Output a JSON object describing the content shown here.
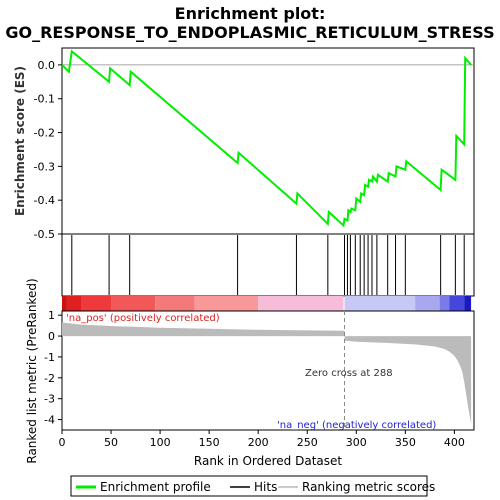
{
  "chart_data": {
    "type": "line",
    "title_line1": "Enrichment plot:",
    "title_line2": "GO_RESPONSE_TO_ENDOPLASMIC_RETICULUM_STRESS",
    "es_ylabel": "Enrichment score (ES)",
    "rank_ylabel": "Ranked list metric (PreRanked)",
    "xlabel": "Rank in Ordered Dataset",
    "xlim": [
      0,
      420
    ],
    "x_ticks": [
      "0",
      "50",
      "100",
      "150",
      "200",
      "250",
      "300",
      "350",
      "400"
    ],
    "es_ylim": [
      -0.5,
      0.05
    ],
    "es_ticks": [
      "0.0",
      "-0.1",
      "-0.2",
      "-0.3",
      "-0.4",
      "-0.5"
    ],
    "rank_ylim": [
      -4.5,
      1.2
    ],
    "rank_ticks": [
      "1",
      "0",
      "-1",
      "-2",
      "-3",
      "-4"
    ],
    "colors": {
      "enrichment": "#00ee00",
      "hits": "#000000",
      "metric": "#bbbbbb",
      "pos_label": "#dd2222",
      "neg_label": "#2222cc"
    },
    "es_profile": {
      "x": [
        0,
        7,
        10,
        48,
        49,
        69,
        70,
        179,
        180,
        239,
        240,
        271,
        272,
        287,
        288,
        291,
        292,
        294,
        295,
        299,
        300,
        304,
        305,
        308,
        309,
        312,
        313,
        316,
        317,
        321,
        322,
        332,
        333,
        340,
        341,
        350,
        351,
        386,
        387,
        401,
        402,
        410,
        411,
        417
      ],
      "y": [
        0.0,
        -0.02,
        0.04,
        -0.05,
        -0.01,
        -0.06,
        -0.02,
        -0.29,
        -0.26,
        -0.41,
        -0.38,
        -0.47,
        -0.435,
        -0.475,
        -0.455,
        -0.46,
        -0.43,
        -0.435,
        -0.425,
        -0.43,
        -0.395,
        -0.405,
        -0.38,
        -0.385,
        -0.355,
        -0.36,
        -0.34,
        -0.345,
        -0.33,
        -0.345,
        -0.325,
        -0.345,
        -0.32,
        -0.33,
        -0.3,
        -0.31,
        -0.285,
        -0.37,
        -0.31,
        -0.34,
        -0.21,
        -0.235,
        0.02,
        0.0
      ]
    },
    "hits": [
      10,
      48,
      69,
      179,
      239,
      271,
      288,
      291,
      294,
      299,
      304,
      308,
      312,
      316,
      321,
      332,
      340,
      350,
      386,
      401,
      410
    ],
    "metric": {
      "x": [
        0,
        20,
        50,
        100,
        150,
        200,
        250,
        287,
        288,
        300,
        330,
        360,
        380,
        390,
        395,
        400,
        403,
        406,
        408,
        410,
        412,
        414,
        416,
        417
      ],
      "y": [
        0.65,
        0.55,
        0.48,
        0.4,
        0.35,
        0.3,
        0.27,
        0.25,
        -0.22,
        -0.27,
        -0.33,
        -0.4,
        -0.5,
        -0.62,
        -0.75,
        -0.95,
        -1.15,
        -1.45,
        -1.7,
        -2.2,
        -2.8,
        -3.4,
        -3.95,
        -4.2
      ]
    },
    "zero_cross_label": "Zero cross at 288",
    "zero_cross": 288,
    "pos_label": "'na_pos' (positively correlated)",
    "neg_label": "'na_neg' (negatively correlated)",
    "legend": {
      "enrichment": "Enrichment profile",
      "hits": "Hits",
      "metric": "Ranking metric scores"
    }
  }
}
